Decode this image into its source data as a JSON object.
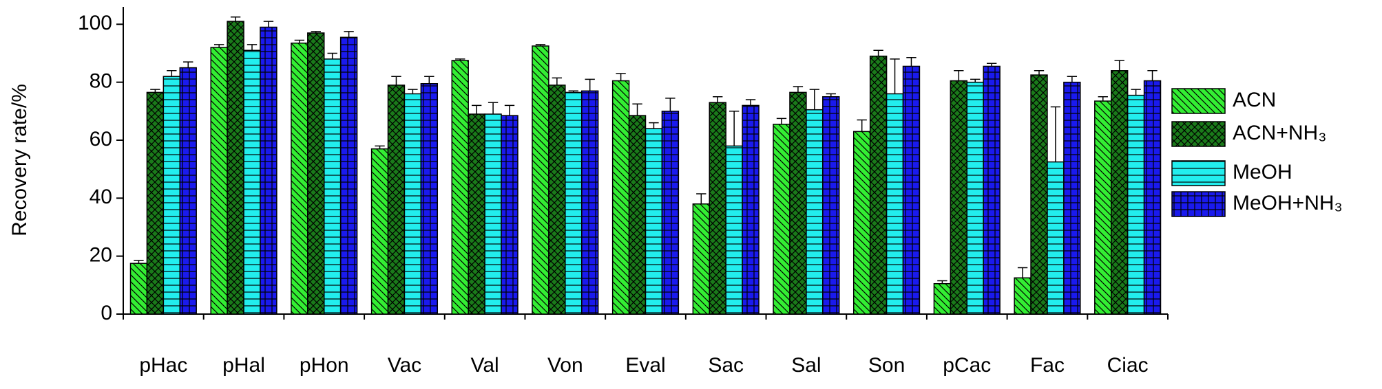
{
  "chart_data": {
    "type": "bar",
    "y_label": "Recovery rate/%",
    "categories": [
      "pHac",
      "pHal",
      "pHon",
      "Vac",
      "Val",
      "Von",
      "Eval",
      "Sac",
      "Sal",
      "Son",
      "pCac",
      "Fac",
      "Ciac"
    ],
    "series": [
      {
        "name": "ACN",
        "color": "#33ee33",
        "pattern": "diagonal",
        "values": [
          17.5,
          92,
          93.5,
          57,
          87.5,
          92.5,
          80.5,
          38,
          65.5,
          63,
          10.5,
          12.5,
          73.5
        ],
        "errors": [
          1,
          1,
          1,
          1,
          0.5,
          0.5,
          2.5,
          3.5,
          2,
          4,
          1,
          3.5,
          1.5
        ]
      },
      {
        "name": "ACN+NH₃",
        "color": "#1a7a1a",
        "pattern": "cross",
        "values": [
          76.5,
          101,
          97,
          79,
          69,
          79,
          68.5,
          73,
          76.5,
          89,
          80.5,
          82.5,
          84
        ],
        "errors": [
          1,
          1.5,
          0.5,
          3,
          3,
          2.5,
          4,
          2,
          2,
          2,
          3.5,
          1.5,
          3.5
        ]
      },
      {
        "name": "MeOH",
        "color": "#22eeee",
        "pattern": "horizontal",
        "values": [
          82,
          91,
          88,
          76,
          69,
          76.5,
          64,
          58,
          70.5,
          76,
          80,
          52.5,
          75.5
        ],
        "errors": [
          2,
          2,
          2,
          1.5,
          4,
          0.5,
          2,
          12,
          7,
          12,
          1,
          19,
          2
        ]
      },
      {
        "name": "MeOH+NH₃",
        "color": "#1a1aee",
        "pattern": "grid",
        "values": [
          85,
          99,
          95.5,
          79.5,
          68.5,
          77,
          70,
          72,
          75,
          85.5,
          85.5,
          80,
          80.5
        ],
        "errors": [
          2,
          2,
          2,
          2.5,
          3.5,
          4,
          4.5,
          2,
          1,
          3,
          1,
          2,
          3.5
        ]
      }
    ],
    "ylim": [
      0,
      106
    ],
    "yticks": [
      0,
      20,
      40,
      60,
      80,
      100
    ]
  }
}
